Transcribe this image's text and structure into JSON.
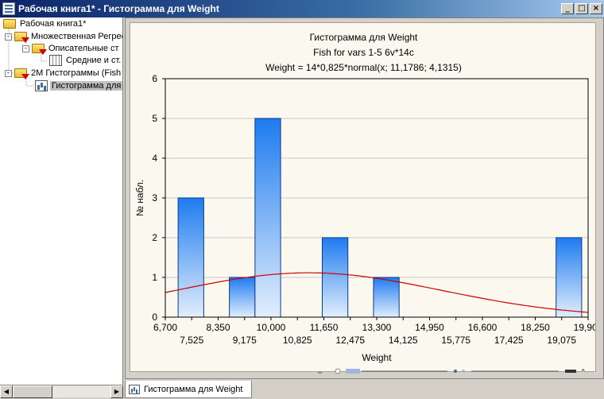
{
  "window": {
    "title": "Рабочая книга1* - Гистограмма для Weight",
    "buttons": {
      "minimize": "_",
      "maximize": "□",
      "close": "×"
    }
  },
  "tree": {
    "items": [
      {
        "label": "Рабочая книга1*",
        "icon": "folder-open-icon"
      },
      {
        "label": "Множественная Регрес",
        "icon": "folder-red-icon",
        "expander": "-"
      },
      {
        "label": "Описательные ст",
        "icon": "folder-red-icon",
        "expander": "-"
      },
      {
        "label": "Средние и ст.",
        "icon": "table-icon"
      },
      {
        "label": "2М Гистограммы (Fish",
        "icon": "folder-red-icon",
        "expander": "-"
      },
      {
        "label": "Гистограмма для",
        "icon": "chart-icon"
      }
    ]
  },
  "tab": {
    "label": "Гистограмма для Weight"
  },
  "chart_data": {
    "type": "bar",
    "title": "Гистограмма для Weight",
    "subtitle1": "Fish for vars 1-5 6v*14c",
    "subtitle2": "Weight = 14*0,825*normal(x; 11,1786; 4,1315)",
    "xlabel": "Weight",
    "ylabel": "№ набл.",
    "xlim": [
      6.7,
      19.9
    ],
    "ylim": [
      0,
      6
    ],
    "yticks": [
      "0",
      "1",
      "2",
      "3",
      "4",
      "5",
      "6"
    ],
    "xticks_top": [
      "6,700",
      "8,350",
      "10,000",
      "11,650",
      "13,300",
      "14,950",
      "16,600",
      "18,250",
      "19,900"
    ],
    "xticks_bottom": [
      "7,525",
      "9,175",
      "10,825",
      "12,475",
      "14,125",
      "15,775",
      "17,425",
      "19,075"
    ],
    "bins": [
      {
        "from": 7.1,
        "to": 7.9,
        "count": 3
      },
      {
        "from": 8.7,
        "to": 9.5,
        "count": 1
      },
      {
        "from": 9.5,
        "to": 10.3,
        "count": 5
      },
      {
        "from": 11.6,
        "to": 12.4,
        "count": 2
      },
      {
        "from": 13.2,
        "to": 14.0,
        "count": 1
      },
      {
        "from": 18.9,
        "to": 19.7,
        "count": 2
      }
    ],
    "curve": {
      "n": 14,
      "width": 0.825,
      "mean": 11.1786,
      "sd": 4.1315
    },
    "grid": true,
    "colors": {
      "bar_top": "#1e7bf0",
      "bar_bottom": "#e2eefc",
      "bar_edge": "#0a3a8a",
      "curve": "#cc0000",
      "grid": "#c8c8c8"
    }
  }
}
